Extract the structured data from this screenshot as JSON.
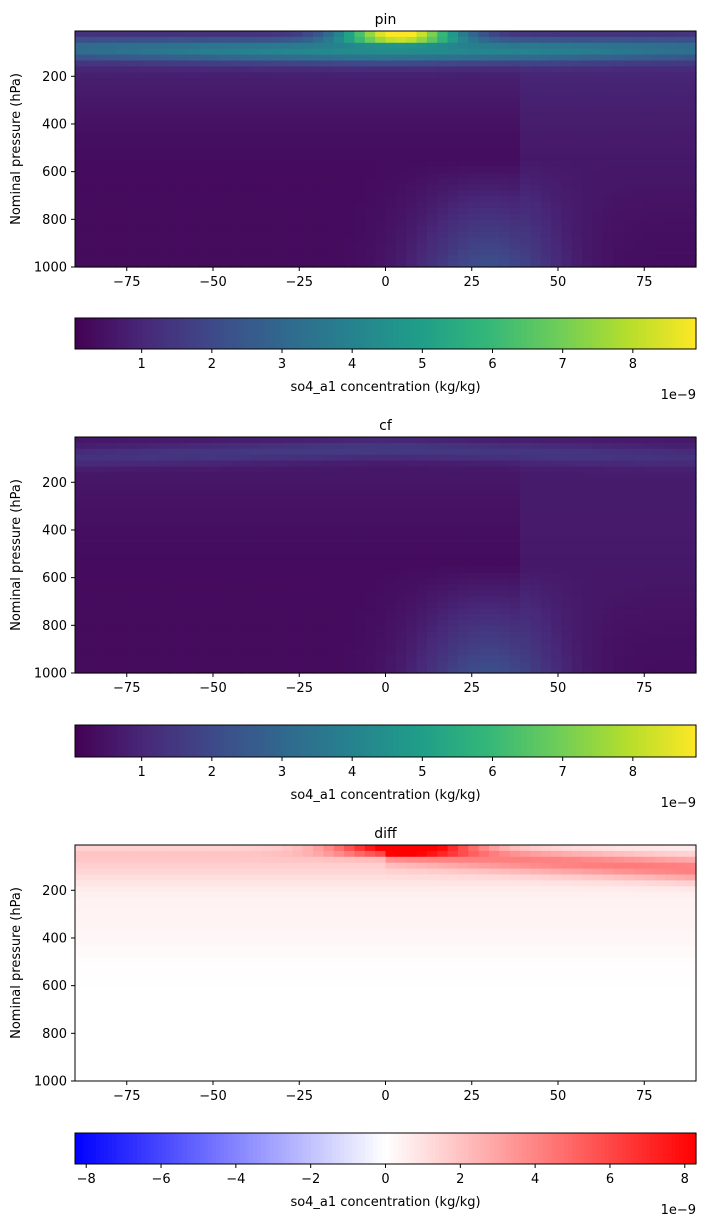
{
  "chart_data": [
    {
      "type": "heatmap",
      "title": "pin",
      "ylabel": "Nominal pressure (hPa)",
      "xlim": [
        -90,
        90
      ],
      "ylim": [
        1000,
        10
      ],
      "xticks": [
        "−75",
        "−50",
        "−25",
        "0",
        "25",
        "50",
        "75"
      ],
      "xtick_values": [
        -75,
        -50,
        -25,
        0,
        25,
        50,
        75
      ],
      "yticks": [
        "200",
        "400",
        "600",
        "800",
        "1000"
      ],
      "ytick_values": [
        200,
        400,
        600,
        800,
        1000
      ],
      "colormap": "viridis",
      "colorbar": {
        "label": "so4_a1 concentration (kg/kg)",
        "range": [
          0.05,
          8.9
        ],
        "ticks": [
          "1",
          "2",
          "3",
          "4",
          "5",
          "6",
          "7",
          "8"
        ],
        "tick_values": [
          1,
          2,
          3,
          4,
          5,
          6,
          7,
          8
        ],
        "offset_text": "1e−9"
      },
      "features": [
        {
          "desc": "upper-level band",
          "lat_center": 0,
          "pressure_hPa": 90,
          "peak": 3.8
        },
        {
          "desc": "tropical tropopause maximum",
          "lat_center": 4,
          "pressure_hPa": 25,
          "peak": 8.9
        },
        {
          "desc": "northern hemisphere surface plume",
          "lat_center": 30,
          "pressure_hPa": 950,
          "peak": 2.6
        }
      ]
    },
    {
      "type": "heatmap",
      "title": "cf",
      "ylabel": "Nominal pressure (hPa)",
      "xlim": [
        -90,
        90
      ],
      "ylim": [
        1000,
        10
      ],
      "xticks": [
        "−75",
        "−50",
        "−25",
        "0",
        "25",
        "50",
        "75"
      ],
      "xtick_values": [
        -75,
        -50,
        -25,
        0,
        25,
        50,
        75
      ],
      "yticks": [
        "200",
        "400",
        "600",
        "800",
        "1000"
      ],
      "ytick_values": [
        200,
        400,
        600,
        800,
        1000
      ],
      "colormap": "viridis",
      "colorbar": {
        "label": "so4_a1 concentration (kg/kg)",
        "range": [
          0.05,
          8.9
        ],
        "ticks": [
          "1",
          "2",
          "3",
          "4",
          "5",
          "6",
          "7",
          "8"
        ],
        "tick_values": [
          1,
          2,
          3,
          4,
          5,
          6,
          7,
          8
        ],
        "offset_text": "1e−9"
      },
      "features": [
        {
          "desc": "upper-level band",
          "lat_center": -10,
          "pressure_hPa": 60,
          "peak": 1.5
        },
        {
          "desc": "northern hemisphere surface plume",
          "lat_center": 30,
          "pressure_hPa": 950,
          "peak": 2.6
        }
      ]
    },
    {
      "type": "heatmap",
      "title": "diff",
      "ylabel": "Nominal pressure (hPa)",
      "xlim": [
        -90,
        90
      ],
      "ylim": [
        1000,
        10
      ],
      "xticks": [
        "−75",
        "−50",
        "−25",
        "0",
        "25",
        "50",
        "75"
      ],
      "xtick_values": [
        -75,
        -50,
        -25,
        0,
        25,
        50,
        75
      ],
      "yticks": [
        "200",
        "400",
        "600",
        "800",
        "1000"
      ],
      "ytick_values": [
        200,
        400,
        600,
        800,
        1000
      ],
      "colormap": "bwr",
      "colorbar": {
        "label": "so4_a1 concentration (kg/kg)",
        "range": [
          -8.3,
          8.3
        ],
        "ticks": [
          "−8",
          "−6",
          "−4",
          "−2",
          "0",
          "2",
          "4",
          "6",
          "8"
        ],
        "tick_values": [
          -8,
          -6,
          -4,
          -2,
          0,
          2,
          4,
          6,
          8
        ],
        "offset_text": "1e−9"
      },
      "features": [
        {
          "desc": "tropical tropopause maximum",
          "lat_center": 5,
          "pressure_hPa": 25,
          "peak": 8.3
        },
        {
          "desc": "high-latitude upper positive band",
          "lat_center": 75,
          "pressure_hPa": 80,
          "peak": 3.0
        }
      ]
    }
  ]
}
